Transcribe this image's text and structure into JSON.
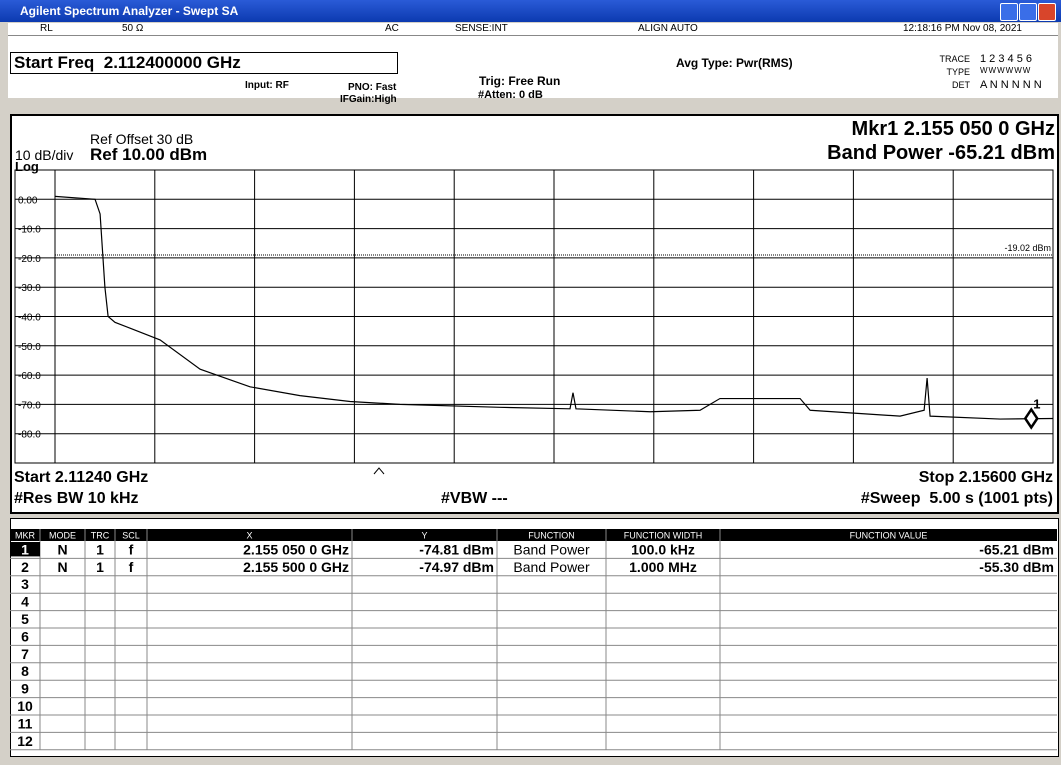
{
  "window": {
    "title": "Agilent Spectrum Analyzer - Swept SA"
  },
  "status_bar": {
    "rl": "RL",
    "impedance": "50 Ω",
    "coupling": "AC",
    "sense": "SENSE:INT",
    "align": "ALIGN AUTO",
    "datetime": "12:18:16 PM Nov 08, 2021"
  },
  "settings": {
    "active_function": "Start Freq  2.112400000 GHz",
    "input": "Input: RF",
    "pno": "PNO: Fast",
    "ifgain": "IFGain:High",
    "trig": "Trig: Free Run",
    "atten": "#Atten: 0 dB",
    "avg_type": "Avg Type: Pwr(RMS)",
    "trace_label": "TRACE",
    "trace_values": "1 2 3 4 5 6",
    "type_label": "TYPE",
    "type_values": "WWWWWW",
    "det_label": "DET",
    "det_values": "A N N N N N"
  },
  "plot_header": {
    "ref_offset": "Ref Offset 30 dB",
    "scale": "10 dB/div",
    "ref_level": "Ref 10.00 dBm",
    "scale_type": "Log",
    "marker_readout": "Mkr1 2.155 050 0 GHz",
    "band_power": "Band Power -65.21 dBm"
  },
  "chart_data": {
    "type": "line",
    "color": "#000000",
    "x": [
      2.1124,
      2.11415,
      2.11437,
      2.11458,
      2.11472,
      2.11502,
      2.11568,
      2.11699,
      2.11874,
      2.12092,
      2.1231,
      2.12529,
      2.12747,
      2.13184,
      2.1349,
      2.13503,
      2.13516,
      2.1384,
      2.14058,
      2.14145,
      2.14495,
      2.14539,
      2.14932,
      2.15037,
      2.1505,
      2.15063,
      2.15369,
      2.156
    ],
    "values": [
      1,
      0,
      -5,
      -30,
      -40,
      -42,
      -44,
      -48,
      -58,
      -64,
      -67,
      -69,
      -70,
      -71,
      -71.5,
      -66,
      -71.5,
      -72.5,
      -72,
      -68,
      -68,
      -72,
      -74,
      -72,
      -61,
      -74,
      -75,
      -74.8
    ],
    "xlim": [
      2.1124,
      2.156
    ],
    "ylim": [
      -90,
      10
    ],
    "yticks": [
      {
        "value": 0,
        "label": "0.00"
      },
      {
        "value": -10,
        "label": "-10.0"
      },
      {
        "value": -20,
        "label": "-20.0"
      },
      {
        "value": -30,
        "label": "-30.0"
      },
      {
        "value": -40,
        "label": "-40.0"
      },
      {
        "value": -50,
        "label": "-50.0"
      },
      {
        "value": -60,
        "label": "-60.0"
      },
      {
        "value": -70,
        "label": "-70.0"
      },
      {
        "value": -80,
        "label": "-80.0"
      }
    ],
    "xgrid_divisions": 10,
    "grid": true,
    "display_line": {
      "value": -19.02,
      "label": "-19.02 dBm"
    },
    "marker": {
      "x": 2.15505,
      "y": -74.81,
      "label": "1"
    }
  },
  "plot_footer": {
    "start": "Start 2.11240 GHz",
    "rbw": "#Res BW 10 kHz",
    "vbw": "#VBW ---",
    "stop": "Stop 2.15600 GHz",
    "sweep": "#Sweep  5.00 s (1001 pts)"
  },
  "marker_table": {
    "columns": [
      "MKR",
      "MODE",
      "TRC",
      "SCL",
      "X",
      "Y",
      "FUNCTION",
      "FUNCTION WIDTH",
      "FUNCTION VALUE"
    ],
    "rows": [
      [
        "1",
        "N",
        "1",
        "f",
        "2.155 050 0 GHz",
        "-74.81 dBm",
        "Band Power",
        "100.0 kHz",
        "-65.21 dBm"
      ],
      [
        "2",
        "N",
        "1",
        "f",
        "2.155 500 0 GHz",
        "-74.97 dBm",
        "Band Power",
        "1.000 MHz",
        "-55.30 dBm"
      ],
      [
        "3"
      ],
      [
        "4"
      ],
      [
        "5"
      ],
      [
        "6"
      ],
      [
        "7"
      ],
      [
        "8"
      ],
      [
        "9"
      ],
      [
        "10"
      ],
      [
        "11"
      ],
      [
        "12"
      ]
    ]
  }
}
